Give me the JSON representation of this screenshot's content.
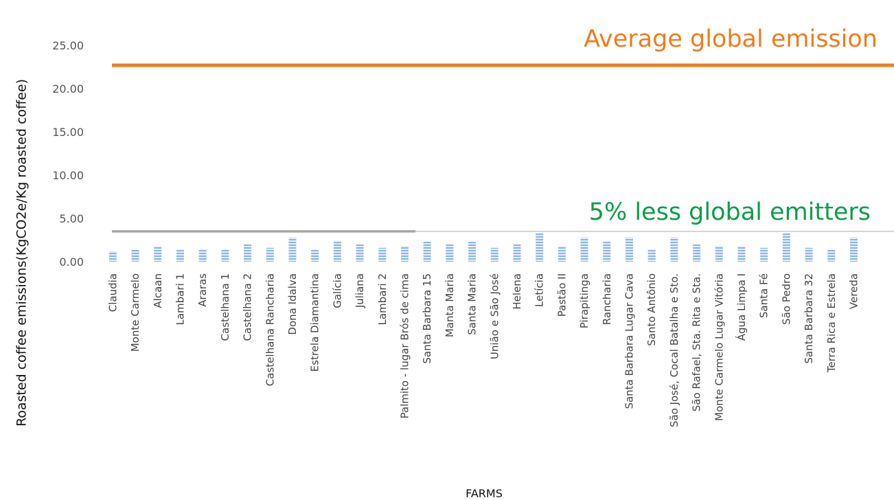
{
  "chart_data": {
    "type": "bar",
    "ylabel": "Roasted coffee emissions(KgCO2e/Kg roasted coffee)",
    "xlabel": "FARMS",
    "ylim": [
      0,
      25
    ],
    "yticks": [
      "0.00",
      "5.00",
      "10.00",
      "15.00",
      "20.00",
      "25.00"
    ],
    "grid": false,
    "categories": [
      "Claudia",
      "Monte Carmelo",
      "Alcaan",
      "Lambari 1",
      "Araras",
      "Castelhana 1",
      "Castelhana 2",
      "Castelhana Rancharia",
      "Dona Idalva",
      "Estrela Diamantina",
      "Galícia",
      "Juliana",
      "Lambari 2",
      "Palmito - lugar Brós de cima",
      "Santa Barbara 15",
      "Manta Maria",
      "Santa Maria",
      "União e São José",
      "Helena",
      "Letícia",
      "Pastão II",
      "Pirapitinga",
      "Rancharia",
      "Santa Barbara Lugar Cava",
      "Santo Antônio",
      "São José, Cocal Batalha e Sto.",
      "São Rafael,  Sta. Rita e Sta.",
      "Monte Carmelo Lugar Vitória",
      "Água Limpa I",
      "Santa Fé",
      "São Pedro",
      "Santa Barbara 32",
      "Terra Rica e Estrela",
      "Vereda"
    ],
    "values": [
      1.2,
      1.4,
      1.8,
      1.4,
      1.4,
      1.4,
      2.0,
      1.6,
      2.8,
      1.4,
      2.3,
      2.0,
      1.6,
      1.8,
      2.3,
      2.0,
      2.3,
      1.6,
      2.0,
      3.3,
      1.8,
      2.8,
      2.3,
      2.8,
      1.4,
      2.8,
      2.0,
      1.8,
      1.8,
      1.6,
      3.3,
      1.6,
      1.4,
      2.8
    ],
    "bar_color": "#8ab4e6",
    "reference_lines": [
      {
        "label": "Average global emission",
        "value": 22.7,
        "color": "#f07c1e"
      },
      {
        "label": "5% less global emitters",
        "value": 3.5,
        "color": "#a6a6a6",
        "label_color": "#0f9d4b"
      }
    ]
  }
}
